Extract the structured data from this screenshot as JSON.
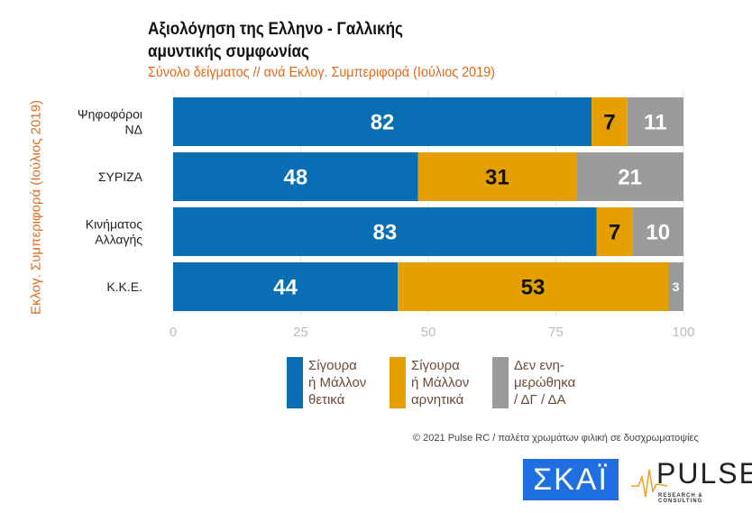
{
  "chart_data": {
    "type": "bar",
    "orientation": "horizontal",
    "stacked": true,
    "title": "Αξιολόγηση της Ελληνο - Γαλλικής αμυντικής συμφωνίας",
    "title_lines": [
      "Αξιολόγηση της Ελληνο - Γαλλικής",
      "αμυντικής συμφωνίας"
    ],
    "subtitle": "Σύνολο δείγματος // ανά Εκλογ. Συμπεριφορά (Ιούλιος 2019)",
    "ylabel": "Εκλογ. Συμπεριφορά (Ιούλιος 2019)",
    "xlabel": "",
    "categories": [
      [
        "Ψηφοφόροι",
        "ΝΔ"
      ],
      [
        "ΣΥΡΙΖΑ"
      ],
      [
        "Κινήματος",
        "Αλλαγής"
      ],
      [
        "Κ.Κ.Ε."
      ]
    ],
    "series": [
      {
        "name": "Σίγουρα ή Μάλλον θετικά",
        "legend_lines": [
          "Σίγουρα",
          "ή Μάλλον",
          "θετικά"
        ],
        "color": "#0a6eb4",
        "values": [
          82,
          48,
          83,
          44
        ],
        "label_color": "#ffffff"
      },
      {
        "name": "Σίγουρα ή Μάλλον αρνητικά",
        "legend_lines": [
          "Σίγουρα",
          "ή Μάλλον",
          "αρνητικά"
        ],
        "color": "#e5a000",
        "values": [
          7,
          31,
          7,
          53
        ],
        "label_color": "#111111"
      },
      {
        "name": "Δεν ενημερώθηκα / ΔΓ / ΔΑ",
        "legend_lines": [
          "Δεν ενη-",
          "μερώθηκα",
          "/ ΔΓ / ΔΑ"
        ],
        "color": "#9b9b9b",
        "values": [
          11,
          21,
          10,
          3
        ],
        "label_color": "#ffffff"
      }
    ],
    "xlim": [
      0,
      100
    ],
    "xticks": [
      0,
      25,
      50,
      75,
      100
    ],
    "grid": true,
    "legend_position": "bottom"
  },
  "footer": "© 2021 Pulse RC  /  παλέτα χρωμάτων φιλική σε δυσχρωματοψίες",
  "logos": {
    "skai": "ΣΚΑΪ",
    "pulse": "PULSE",
    "pulse_tagline": "RESEARCH & CONSULTING"
  }
}
